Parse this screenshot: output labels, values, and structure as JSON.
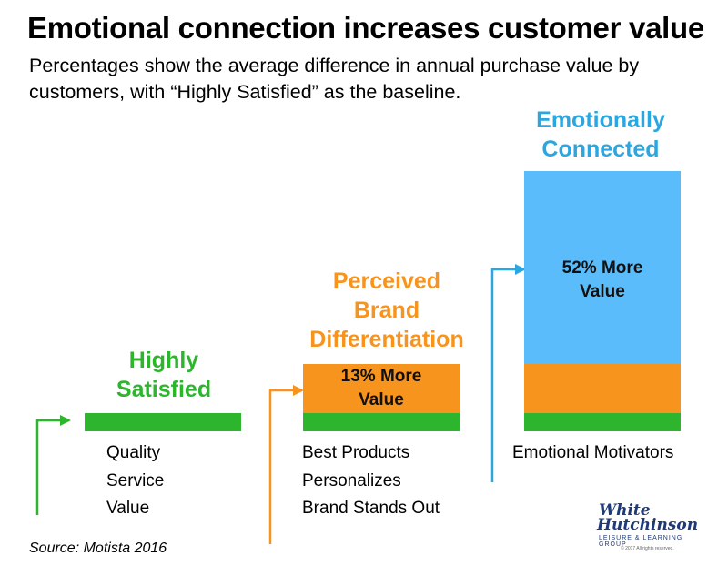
{
  "title": "Emotional connection increases customer value",
  "subtitle": "Percentages show the average difference in annual purchase value by customers, with “Highly Satisfied” as the baseline.",
  "colors": {
    "green": "#2db52d",
    "orange": "#f7941d",
    "blue": "#5bbcfb",
    "blue_label": "#2aa7e0"
  },
  "chart_data": {
    "type": "bar",
    "stacked": true,
    "categories": [
      "Highly Satisfied",
      "Perceived Brand Differentiation",
      "Emotionally Connected"
    ],
    "category_label_lines": [
      [
        "Highly",
        "Satisfied"
      ],
      [
        "Perceived",
        "Brand",
        "Differentiation"
      ],
      [
        "Emotionally",
        "Connected"
      ]
    ],
    "series": [
      {
        "name": "Highly Satisfied (baseline)",
        "color": "#2db52d",
        "values": [
          1,
          1,
          1
        ]
      },
      {
        "name": "Perceived Brand Differentiation",
        "color": "#f7941d",
        "values": [
          0,
          1,
          1
        ]
      },
      {
        "name": "Emotionally Connected",
        "color": "#5bbcfb",
        "values": [
          0,
          0,
          3
        ]
      }
    ],
    "annotations": [
      {
        "category": "Perceived Brand Differentiation",
        "lines": [
          "13% More",
          "Value"
        ]
      },
      {
        "category": "Emotionally Connected",
        "lines": [
          "52% More",
          "Value"
        ]
      }
    ],
    "increase_percent": [
      0,
      13,
      52
    ],
    "drivers": [
      [
        "Quality",
        "Service",
        "Value"
      ],
      [
        "Best Products",
        "Personalizes",
        "Brand Stands Out"
      ],
      [
        "Emotional Motivators"
      ]
    ]
  },
  "source": "Source: Motista 2016",
  "logo": {
    "line1": "White",
    "line2": "Hutchinson",
    "tagline": "LEISURE & LEARNING GROUP",
    "copyright": "© 2017 All rights reserved."
  }
}
